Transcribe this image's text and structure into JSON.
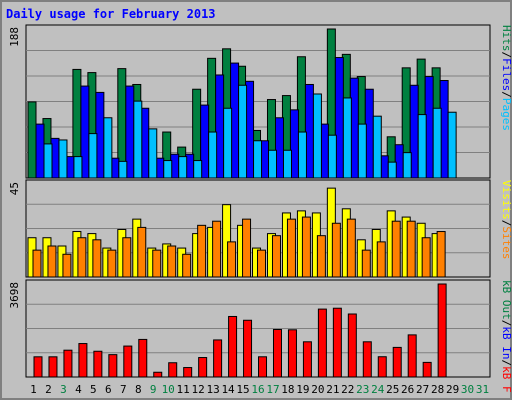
{
  "title": "Daily usage for February 2013",
  "colors": {
    "background": "#c0c0c0",
    "title": "#0000ff",
    "hits": "#008040",
    "files": "#0000ff",
    "pages": "#00c0ff",
    "visits": "#ffff00",
    "sites": "#ff8000",
    "kbout": "#008040",
    "kbin": "#0000ff",
    "kbf": "#ff0000",
    "weekday_label": "#000000",
    "weekend_label": "#008040"
  },
  "chart_data": [
    {
      "type": "bar",
      "name": "pages-files-hits",
      "ymax": 188,
      "axis_label": "188",
      "side_label_parts": [
        {
          "text": "Pages",
          "color": "#00c0ff"
        },
        {
          "text": "/",
          "color": "#000000"
        },
        {
          "text": "Files",
          "color": "#0000ff"
        },
        {
          "text": "/",
          "color": "#000000"
        },
        {
          "text": "Hits",
          "color": "#008040"
        }
      ],
      "series": [
        {
          "name": "Hits",
          "values": [
            96,
            75,
            43,
            137,
            133,
            36,
            138,
            118,
            39,
            58,
            39,
            112,
            151,
            163,
            141,
            60,
            99,
            104,
            153,
            87,
            188,
            156,
            128,
            32,
            52,
            139,
            150,
            139,
            0,
            0,
            0
          ]
        },
        {
          "name": "Files",
          "values": [
            68,
            50,
            27,
            116,
            108,
            25,
            116,
            88,
            25,
            30,
            30,
            92,
            130,
            145,
            122,
            47,
            76,
            86,
            118,
            68,
            152,
            126,
            112,
            28,
            42,
            117,
            128,
            123,
            0,
            0,
            0
          ]
        },
        {
          "name": "Pages",
          "values": [
            43,
            48,
            27,
            56,
            76,
            21,
            97,
            62,
            22,
            27,
            22,
            58,
            88,
            117,
            47,
            35,
            35,
            58,
            106,
            54,
            101,
            68,
            78,
            20,
            32,
            80,
            88,
            83,
            0,
            0,
            0
          ]
        }
      ]
    },
    {
      "type": "bar",
      "name": "visits-sites",
      "ymax": 45,
      "axis_label": "45",
      "side_label_parts": [
        {
          "text": "Sites",
          "color": "#ff8000"
        },
        {
          "text": "/",
          "color": "#000000"
        },
        {
          "text": "Visits",
          "color": "#ffff00"
        }
      ],
      "series": [
        {
          "name": "Visits",
          "values": [
            19,
            19,
            15,
            22,
            21,
            14,
            23,
            28,
            14,
            16,
            14,
            21,
            24,
            35,
            25,
            14,
            21,
            31,
            32,
            31,
            43,
            33,
            18,
            23,
            32,
            29,
            26,
            21,
            0,
            0,
            0
          ]
        },
        {
          "name": "Sites",
          "values": [
            13,
            15,
            11,
            19,
            18,
            13,
            19,
            24,
            13,
            15,
            11,
            25,
            27,
            17,
            28,
            13,
            20,
            28,
            29,
            20,
            26,
            28,
            13,
            17,
            27,
            27,
            19,
            22,
            0,
            0,
            0
          ]
        }
      ]
    },
    {
      "type": "bar",
      "name": "kbf-kbin-kbout",
      "ymax": 3698,
      "axis_label": "3698",
      "side_label_parts": [
        {
          "text": "kB F",
          "color": "#ff0000"
        },
        {
          "text": "/",
          "color": "#000000"
        },
        {
          "text": "kB In",
          "color": "#0000ff"
        },
        {
          "text": "/",
          "color": "#000000"
        },
        {
          "text": "kB Out",
          "color": "#008040"
        }
      ],
      "series": [
        {
          "name": "kB F",
          "values": [
            803,
            803,
            1066,
            1330,
            1024,
            889,
            1230,
            1494,
            189,
            567,
            376,
            774,
            1474,
            2407,
            2256,
            804,
            1889,
            1877,
            1400,
            2700,
            2735,
            2505,
            1400,
            806,
            1177,
            1675,
            581,
            3698,
            0,
            0,
            0
          ]
        }
      ]
    }
  ],
  "x_labels": [
    "1",
    "2",
    "3",
    "4",
    "5",
    "6",
    "7",
    "8",
    "9",
    "10",
    "11",
    "12",
    "13",
    "14",
    "15",
    "16",
    "17",
    "18",
    "19",
    "20",
    "21",
    "22",
    "23",
    "24",
    "25",
    "26",
    "27",
    "28",
    "29",
    "30",
    "31"
  ],
  "weekend_days": [
    3,
    9,
    10,
    16,
    17,
    23,
    24,
    30,
    31
  ]
}
